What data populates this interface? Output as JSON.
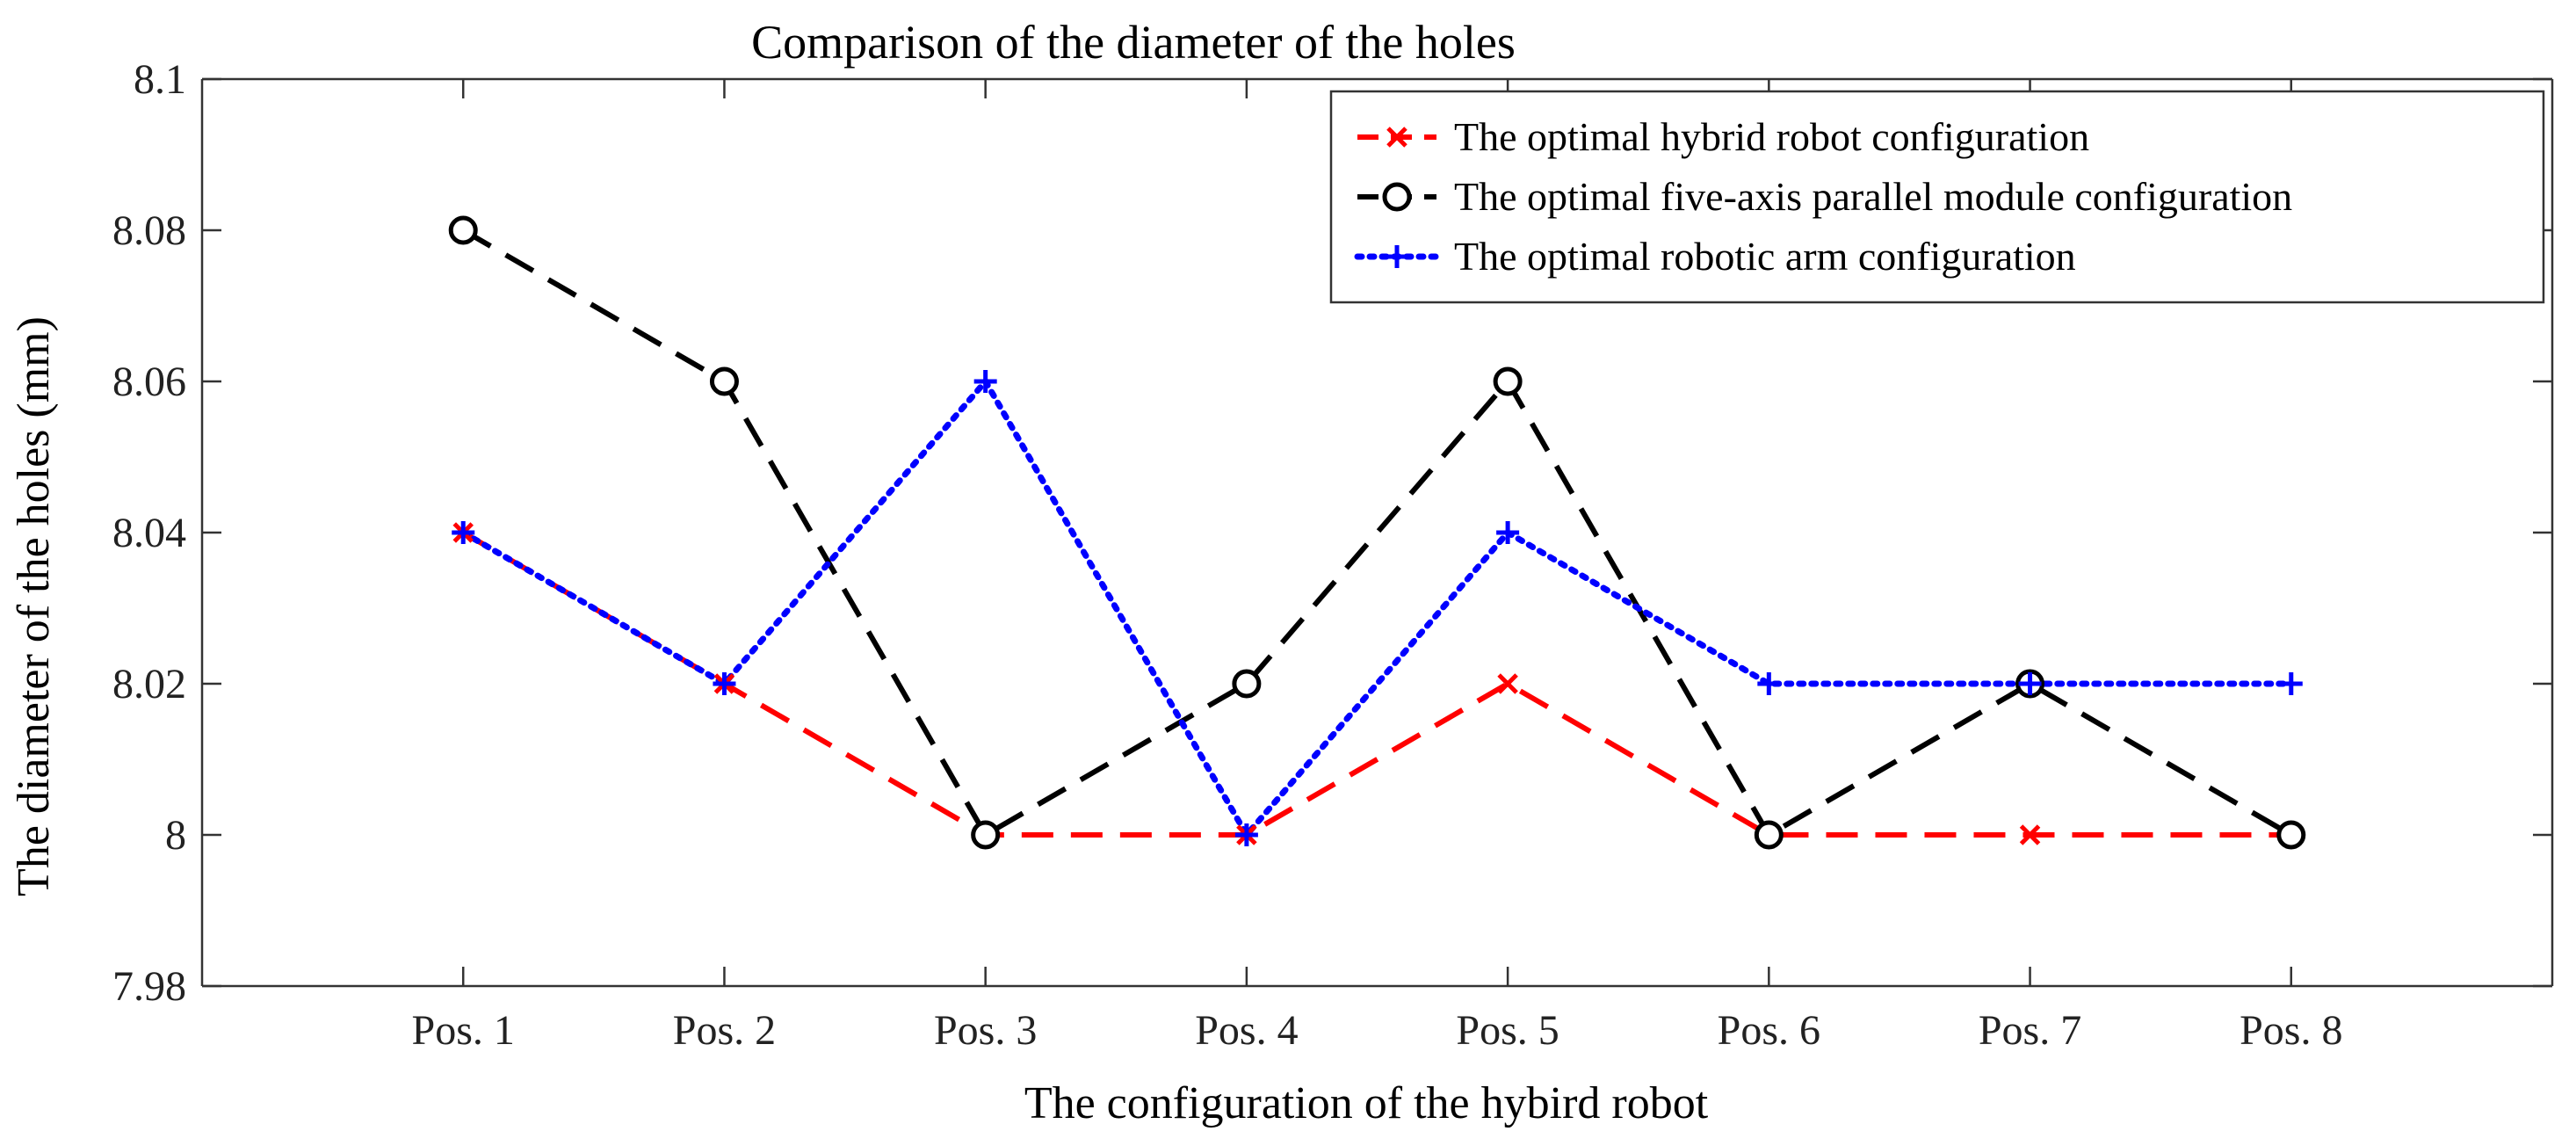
{
  "chart_data": {
    "type": "line",
    "title": "Comparison of the diameter of the holes",
    "xlabel": "The configuration of the hybird robot",
    "ylabel": "The diameter of the holes (mm)",
    "categories": [
      "Pos. 1",
      "Pos. 2",
      "Pos. 3",
      "Pos. 4",
      "Pos. 5",
      "Pos. 6",
      "Pos. 7",
      "Pos. 8"
    ],
    "ylim": [
      7.98,
      8.1
    ],
    "yticks": [
      7.98,
      8,
      8.02,
      8.04,
      8.06,
      8.08,
      8.1
    ],
    "ytick_labels": [
      "7.98",
      "8",
      "8.02",
      "8.04",
      "8.06",
      "8.08",
      "8.1"
    ],
    "legend_position": "top-right",
    "series": [
      {
        "name": "The optimal hybrid robot configuration",
        "values": [
          8.04,
          8.02,
          8.0,
          8.0,
          8.02,
          8.0,
          8.0,
          8.0
        ],
        "color": "#ff0000",
        "line_style": "dashed",
        "marker": "x"
      },
      {
        "name": "The optimal five-axis parallel module configuration",
        "values": [
          8.08,
          8.06,
          8.0,
          8.02,
          8.06,
          8.0,
          8.02,
          8.0
        ],
        "color": "#000000",
        "line_style": "dashed",
        "marker": "circle"
      },
      {
        "name": "The optimal robotic arm configuration",
        "values": [
          8.04,
          8.02,
          8.06,
          8.0,
          8.04,
          8.02,
          8.02,
          8.02
        ],
        "color": "#0000ff",
        "line_style": "dotted",
        "marker": "plus"
      }
    ]
  }
}
